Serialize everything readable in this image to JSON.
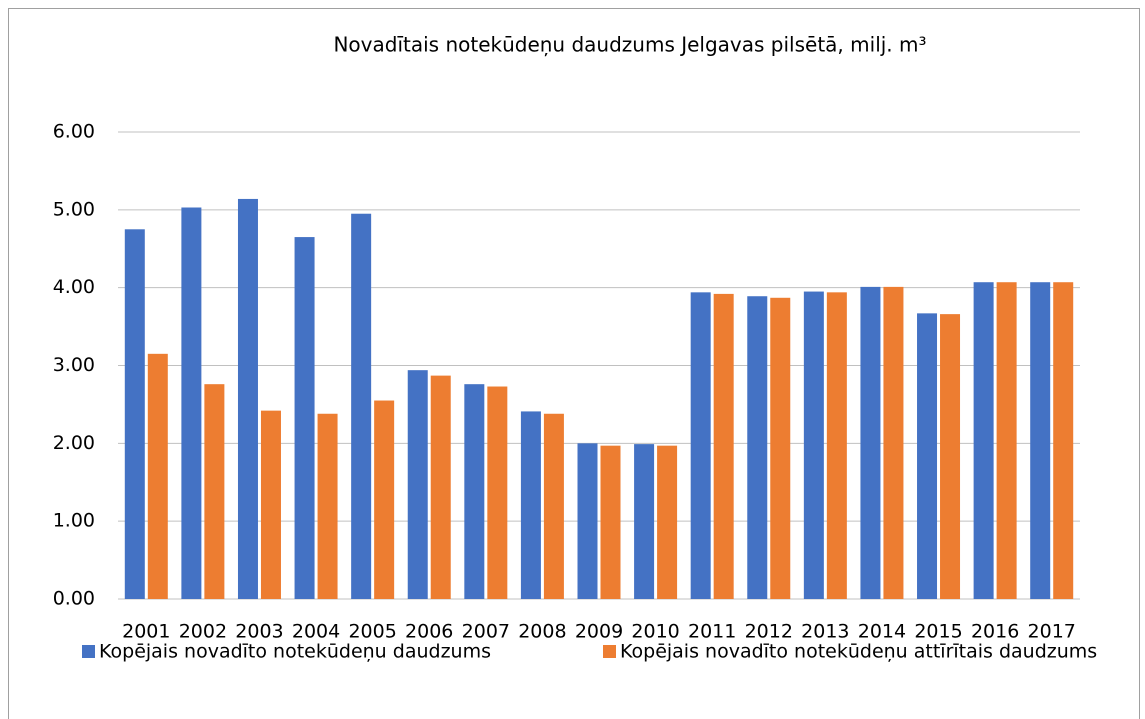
{
  "chart_data": {
    "type": "bar",
    "title": "Novadītais notekūdeņu daudzums Jelgavas pilsētā, milj. m³",
    "categories": [
      "2001",
      "2002",
      "2003",
      "2004",
      "2005",
      "2006",
      "2007",
      "2008",
      "2009",
      "2010",
      "2011",
      "2012",
      "2013",
      "2014",
      "2015",
      "2016",
      "2017"
    ],
    "series": [
      {
        "name": "Kopējais novadīto notekūdeņu daudzums",
        "color": "#4472c4",
        "values": [
          4.75,
          5.03,
          5.14,
          4.65,
          4.95,
          2.94,
          2.76,
          2.41,
          2.0,
          1.99,
          3.94,
          3.89,
          3.95,
          4.01,
          3.67,
          4.07,
          4.07
        ]
      },
      {
        "name": "Kopējais novadīto notekūdeņu attīrītais daudzums",
        "color": "#ed7d31",
        "values": [
          3.15,
          2.76,
          2.42,
          2.38,
          2.55,
          2.87,
          2.73,
          2.38,
          1.97,
          1.97,
          3.92,
          3.87,
          3.94,
          4.01,
          3.66,
          4.07,
          4.07
        ]
      }
    ],
    "ylim": [
      0,
      6
    ],
    "yticks": [
      {
        "value": 0,
        "label": "0.00"
      },
      {
        "value": 1,
        "label": "1.00"
      },
      {
        "value": 2,
        "label": "2.00"
      },
      {
        "value": 3,
        "label": "3.00"
      },
      {
        "value": 4,
        "label": "4.00"
      },
      {
        "value": 5,
        "label": "5.00"
      },
      {
        "value": 6,
        "label": "6.00"
      }
    ],
    "grid": true,
    "legend": "bottom"
  }
}
